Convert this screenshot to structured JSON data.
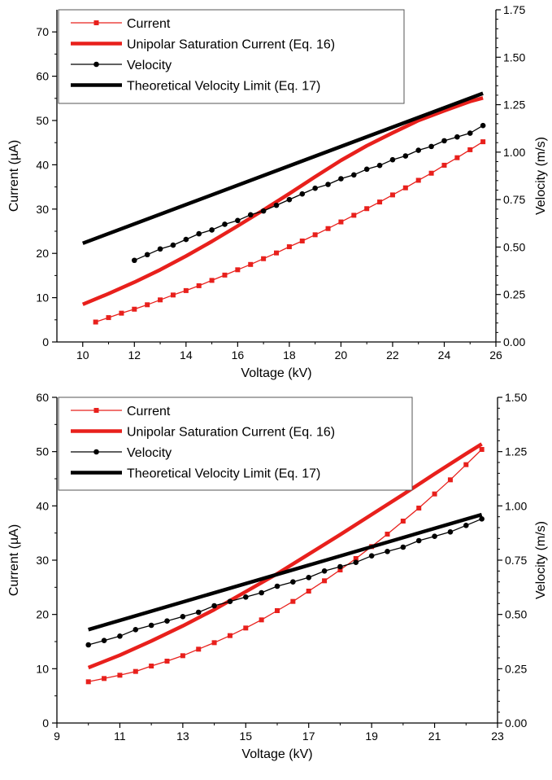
{
  "colors": {
    "current": "#e8201c",
    "velocity": "#000000",
    "axis": "#000000"
  },
  "chart_data": [
    {
      "type": "line",
      "xlabel": "Voltage (kV)",
      "ylabel": "Current (µA)",
      "y2label": "Velocity (m/s)",
      "xlim": [
        9,
        26
      ],
      "ylim": [
        0,
        75
      ],
      "y2lim": [
        0,
        1.75
      ],
      "xticks": [
        10,
        12,
        14,
        16,
        18,
        20,
        22,
        24,
        26
      ],
      "yticks": [
        0,
        10,
        20,
        30,
        40,
        50,
        60,
        70
      ],
      "y2ticks": [
        "0.00",
        "0.25",
        "0.50",
        "0.75",
        "1.00",
        "1.25",
        "1.50",
        "1.75"
      ],
      "legend": "top-left",
      "grid": false,
      "series": [
        {
          "name": "Current",
          "axis": "left",
          "style": "line-square-markers",
          "color": "#e8201c",
          "x": [
            10.5,
            11,
            11.5,
            12,
            12.5,
            13,
            13.5,
            14,
            14.5,
            15,
            15.5,
            16,
            16.5,
            17,
            17.5,
            18,
            18.5,
            19,
            19.5,
            20,
            20.5,
            21,
            21.5,
            22,
            22.5,
            23,
            23.5,
            24,
            24.5,
            25,
            25.5
          ],
          "y": [
            4.5,
            5.5,
            6.5,
            7.4,
            8.4,
            9.5,
            10.6,
            11.6,
            12.7,
            13.9,
            15.1,
            16.3,
            17.5,
            18.8,
            20.1,
            21.5,
            22.8,
            24.2,
            25.6,
            27.1,
            28.6,
            30.1,
            31.6,
            33.2,
            34.8,
            36.5,
            38.1,
            39.9,
            41.6,
            43.4,
            45.2
          ]
        },
        {
          "name": "Unipolar Saturation Current (Eq. 16)",
          "axis": "left",
          "style": "thick-line",
          "color": "#e8201c",
          "x": [
            10,
            11,
            12,
            13,
            14,
            15,
            16,
            17,
            18,
            19,
            20,
            21,
            22,
            23,
            24,
            25,
            25.5
          ],
          "y": [
            8.5,
            10.9,
            13.5,
            16.3,
            19.4,
            22.7,
            26.2,
            29.8,
            33.5,
            37.3,
            41,
            44.3,
            47.2,
            50,
            52.2,
            54.3,
            55.1
          ]
        },
        {
          "name": "Velocity",
          "axis": "right",
          "style": "line-circle-markers",
          "color": "#000000",
          "x": [
            12,
            12.5,
            13,
            13.5,
            14,
            14.5,
            15,
            15.5,
            16,
            16.5,
            17,
            17.5,
            18,
            18.5,
            19,
            19.5,
            20,
            20.5,
            21,
            21.5,
            22,
            22.5,
            23,
            23.5,
            24,
            24.5,
            25,
            25.5
          ],
          "y": [
            0.43,
            0.46,
            0.49,
            0.51,
            0.54,
            0.57,
            0.59,
            0.62,
            0.64,
            0.67,
            0.69,
            0.72,
            0.75,
            0.78,
            0.81,
            0.83,
            0.86,
            0.88,
            0.91,
            0.93,
            0.96,
            0.98,
            1.01,
            1.03,
            1.06,
            1.08,
            1.1,
            1.14
          ]
        },
        {
          "name": "Theoretical Velocity Limit (Eq. 17)",
          "axis": "right",
          "style": "thick-line",
          "color": "#000000",
          "x": [
            10,
            25.5
          ],
          "y": [
            0.52,
            1.31
          ]
        }
      ]
    },
    {
      "type": "line",
      "xlabel": "Voltage (kV)",
      "ylabel": "Current (µA)",
      "y2label": "Velocity (m/s)",
      "xlim": [
        9,
        23
      ],
      "ylim": [
        0,
        60
      ],
      "y2lim": [
        0,
        1.5
      ],
      "xticks": [
        9,
        11,
        13,
        15,
        17,
        19,
        21,
        23
      ],
      "yticks": [
        0,
        10,
        20,
        30,
        40,
        50,
        60
      ],
      "y2ticks": [
        "0.00",
        "0.25",
        "0.50",
        "0.75",
        "1.00",
        "1.25",
        "1.50"
      ],
      "legend": "top-left",
      "grid": false,
      "series": [
        {
          "name": "Current",
          "axis": "left",
          "style": "line-square-markers",
          "color": "#e8201c",
          "x": [
            10,
            10.5,
            11,
            11.5,
            12,
            12.5,
            13,
            13.5,
            14,
            14.5,
            15,
            15.5,
            16,
            16.5,
            17,
            17.5,
            18,
            18.5,
            19,
            19.5,
            20,
            20.5,
            21,
            21.5,
            22,
            22.5
          ],
          "y": [
            7.6,
            8.2,
            8.8,
            9.5,
            10.5,
            11.4,
            12.4,
            13.6,
            14.8,
            16.1,
            17.5,
            19,
            20.7,
            22.4,
            24.3,
            26.2,
            28.2,
            30.3,
            32.5,
            34.8,
            37.2,
            39.6,
            42.2,
            44.8,
            47.6,
            50.4
          ]
        },
        {
          "name": "Unipolar Saturation Current (Eq. 16)",
          "axis": "left",
          "style": "thick-line",
          "color": "#e8201c",
          "x": [
            10,
            11,
            12,
            13,
            14,
            15,
            16,
            17,
            18,
            19,
            20,
            21,
            22,
            22.5
          ],
          "y": [
            10.2,
            12.5,
            15.1,
            17.9,
            20.9,
            24.2,
            27.5,
            31.1,
            34.7,
            38.4,
            42.1,
            45.9,
            49.6,
            51.4
          ]
        },
        {
          "name": "Velocity",
          "axis": "right",
          "style": "line-circle-markers",
          "color": "#000000",
          "x": [
            10,
            10.5,
            11,
            11.5,
            12,
            12.5,
            13,
            13.5,
            14,
            14.5,
            15,
            15.5,
            16,
            16.5,
            17,
            17.5,
            18,
            18.5,
            19,
            19.5,
            20,
            20.5,
            21,
            21.5,
            22,
            22.5
          ],
          "y": [
            0.36,
            0.38,
            0.4,
            0.43,
            0.45,
            0.47,
            0.49,
            0.51,
            0.54,
            0.56,
            0.58,
            0.6,
            0.63,
            0.65,
            0.67,
            0.7,
            0.72,
            0.74,
            0.77,
            0.79,
            0.81,
            0.84,
            0.86,
            0.88,
            0.91,
            0.94
          ]
        },
        {
          "name": "Theoretical Velocity Limit (Eq. 17)",
          "axis": "right",
          "style": "thick-line",
          "color": "#000000",
          "x": [
            10,
            22.5
          ],
          "y": [
            0.43,
            0.96
          ]
        }
      ]
    }
  ]
}
